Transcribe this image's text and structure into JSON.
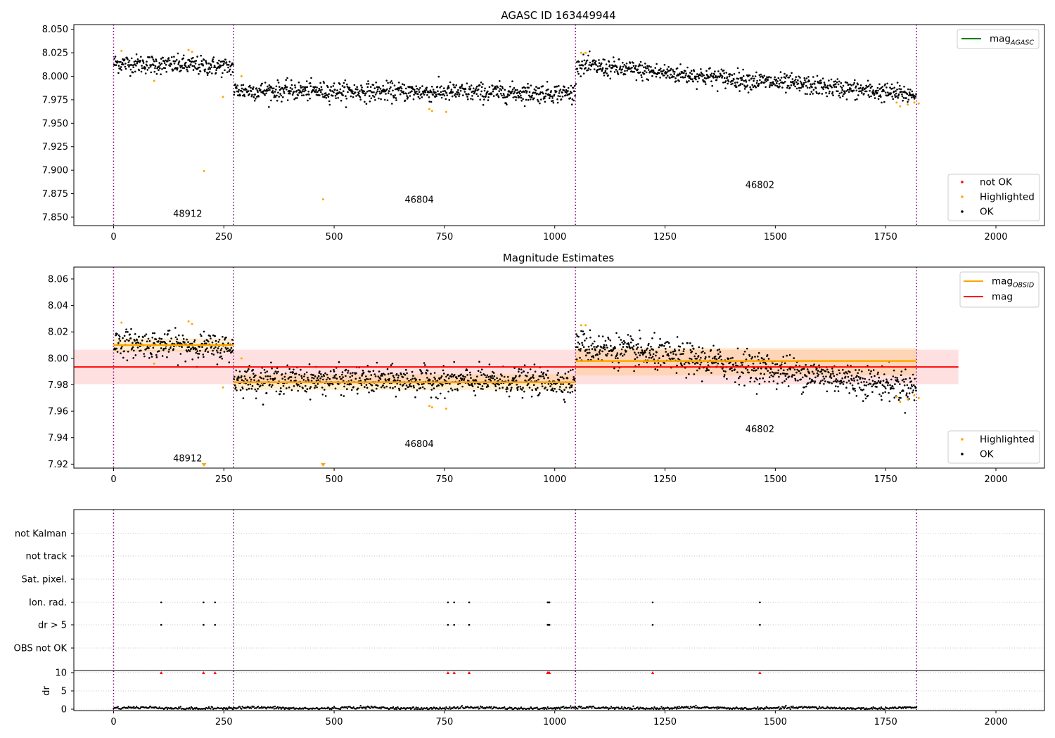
{
  "chart_data": [
    {
      "type": "scatter",
      "title": "AGASC ID 163449944",
      "xlim": [
        -90,
        2110
      ],
      "ylim": [
        7.841,
        8.055
      ],
      "xticks": [
        "0",
        "250",
        "500",
        "750",
        "1000",
        "1250",
        "1500",
        "1750",
        "2000"
      ],
      "yticks": [
        "7.850",
        "7.875",
        "7.900",
        "7.925",
        "7.950",
        "7.975",
        "8.000",
        "8.025",
        "8.050"
      ],
      "obsid_boundaries": [
        0,
        272,
        1047,
        1820
      ],
      "obsid_labels": [
        {
          "text": "48912",
          "x": 135,
          "y": 7.8505
        },
        {
          "text": "46804",
          "x": 660,
          "y": 7.8655
        },
        {
          "text": "46802",
          "x": 1432,
          "y": 7.881
        }
      ],
      "legend_top": [
        {
          "name": "mag",
          "subscript": "AGASC",
          "color": "#008000"
        }
      ],
      "legend_bottom": [
        {
          "name": "not OK",
          "color": "#ff0000"
        },
        {
          "name": "Highlighted",
          "color": "#ffa500"
        },
        {
          "name": "OK",
          "color": "#000000"
        }
      ],
      "segments": [
        {
          "x": [
            0,
            272
          ],
          "y_start": 8.014,
          "y_end": 8.01,
          "noise": 0.005
        },
        {
          "x": [
            272,
            1047
          ],
          "y_start": 7.985,
          "y_end": 7.982,
          "noise": 0.005
        },
        {
          "x": [
            1047,
            1820
          ],
          "y_start": 8.012,
          "y_end": 7.98,
          "noise": 0.005
        }
      ],
      "highlighted_points": [
        {
          "x": 18,
          "y": 8.027
        },
        {
          "x": 92,
          "y": 7.995
        },
        {
          "x": 170,
          "y": 8.028
        },
        {
          "x": 178,
          "y": 8.026
        },
        {
          "x": 205,
          "y": 7.899
        },
        {
          "x": 248,
          "y": 7.978
        },
        {
          "x": 290,
          "y": 8.0
        },
        {
          "x": 475,
          "y": 7.869
        },
        {
          "x": 716,
          "y": 7.965
        },
        {
          "x": 722,
          "y": 7.963
        },
        {
          "x": 754,
          "y": 7.962
        },
        {
          "x": 1060,
          "y": 8.025
        },
        {
          "x": 1070,
          "y": 8.025
        },
        {
          "x": 1775,
          "y": 7.972
        },
        {
          "x": 1783,
          "y": 7.968
        },
        {
          "x": 1800,
          "y": 7.97
        },
        {
          "x": 1815,
          "y": 7.972
        },
        {
          "x": 1825,
          "y": 7.971
        }
      ]
    },
    {
      "type": "scatter",
      "title": "Magnitude Estimates",
      "xlim": [
        -90,
        2110
      ],
      "ylim": [
        7.917,
        8.069
      ],
      "xticks": [
        "0",
        "250",
        "500",
        "750",
        "1000",
        "1250",
        "1500",
        "1750",
        "2000"
      ],
      "yticks": [
        "7.92",
        "7.94",
        "7.96",
        "7.98",
        "8.00",
        "8.02",
        "8.04",
        "8.06"
      ],
      "obsid_boundaries": [
        0,
        272,
        1047,
        1820
      ],
      "obsid_labels": [
        {
          "text": "48912",
          "x": 135,
          "y": 7.922
        },
        {
          "text": "46804",
          "x": 660,
          "y": 7.933
        },
        {
          "text": "46802",
          "x": 1432,
          "y": 7.944
        }
      ],
      "legend_top": [
        {
          "name": "mag",
          "subscript": "OBSID",
          "color": "#ffa500"
        },
        {
          "name": "mag",
          "color": "#ff0000"
        }
      ],
      "legend_bottom": [
        {
          "name": "Highlighted",
          "color": "#ffa500"
        },
        {
          "name": "OK",
          "color": "#000000"
        }
      ],
      "mag": {
        "value": 7.9935,
        "band": [
          7.9805,
          8.0065
        ],
        "x": [
          -90,
          1915
        ]
      },
      "mag_obsid": [
        {
          "x": [
            0,
            272
          ],
          "value": 8.01,
          "band": [
            8.005,
            8.015
          ]
        },
        {
          "x": [
            272,
            1047
          ],
          "value": 7.982,
          "band": [
            7.976,
            7.988
          ]
        },
        {
          "x": [
            1047,
            1820
          ],
          "value": 7.998,
          "band": [
            7.987,
            8.008
          ]
        }
      ],
      "segments": [
        {
          "x": [
            0,
            272
          ],
          "y_start": 8.012,
          "y_end": 8.008,
          "noise": 0.005
        },
        {
          "x": [
            272,
            1047
          ],
          "y_start": 7.984,
          "y_end": 7.982,
          "noise": 0.005
        },
        {
          "x": [
            1047,
            1820
          ],
          "y_start": 8.01,
          "y_end": 7.978,
          "noise": 0.006
        }
      ],
      "highlighted_points": [
        {
          "x": 18,
          "y": 8.027
        },
        {
          "x": 92,
          "y": 7.996
        },
        {
          "x": 170,
          "y": 8.028
        },
        {
          "x": 178,
          "y": 8.026
        },
        {
          "x": 248,
          "y": 7.978
        },
        {
          "x": 290,
          "y": 8.0
        },
        {
          "x": 716,
          "y": 7.964
        },
        {
          "x": 722,
          "y": 7.963
        },
        {
          "x": 754,
          "y": 7.962
        },
        {
          "x": 1060,
          "y": 8.025
        },
        {
          "x": 1070,
          "y": 8.025
        },
        {
          "x": 1775,
          "y": 7.971
        },
        {
          "x": 1783,
          "y": 7.967
        },
        {
          "x": 1800,
          "y": 7.969
        },
        {
          "x": 1815,
          "y": 7.972
        },
        {
          "x": 1825,
          "y": 7.97
        }
      ],
      "out_of_range_markers": [
        {
          "x": 205
        },
        {
          "x": 475
        }
      ]
    },
    {
      "type": "scatter",
      "title": "",
      "xlim": [
        -90,
        2110
      ],
      "xticks": [
        "0",
        "250",
        "500",
        "750",
        "1000",
        "1250",
        "1500",
        "1750",
        "2000"
      ],
      "obsid_boundaries": [
        0,
        272,
        1047,
        1820
      ],
      "flag_rows": [
        "not Kalman",
        "not track",
        "Sat. pixel.",
        "Ion. rad.",
        "dr > 5",
        "OBS not OK"
      ],
      "flagged_x": [
        108,
        204,
        230,
        758,
        772,
        806,
        984,
        986,
        988,
        1222,
        1465
      ],
      "dr": {
        "ylabel": "dr",
        "yticks": [
          "0",
          "5",
          "10"
        ],
        "ylim": [
          -0.5,
          10.5
        ],
        "baseline_mean": 0.3,
        "x_range": [
          0,
          1820
        ],
        "clipped_value": 10
      }
    }
  ]
}
